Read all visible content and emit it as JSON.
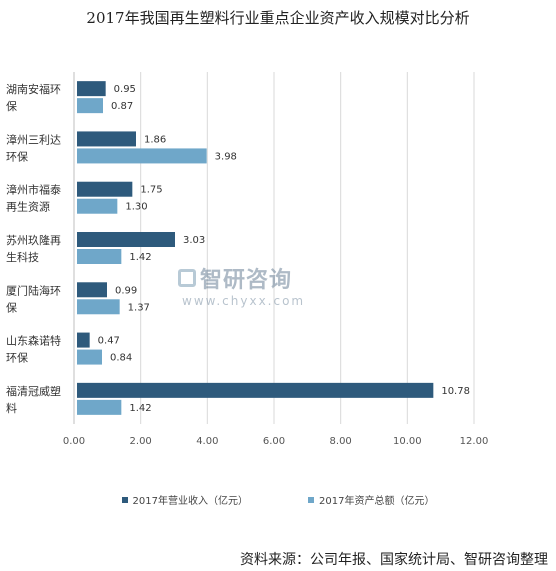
{
  "title": "2017年我国再生塑料行业重点企业资产收入规模对比分析",
  "source": "资料来源：公司年报、国家统计局、智研咨询整理",
  "watermark": {
    "name": "智研咨询",
    "url": "www.chyxx.com"
  },
  "colors": {
    "revenue": "#2e5a7c",
    "assets": "#6fa7c9",
    "grid": "#d9d9d9"
  },
  "chart_data": {
    "type": "bar",
    "orientation": "horizontal",
    "categories": [
      [
        "湖南安福环",
        "保"
      ],
      [
        "漳州三利达",
        "环保"
      ],
      [
        "漳州市福泰",
        "再生资源"
      ],
      [
        "苏州玖隆再",
        "生科技"
      ],
      [
        "厦门陆海环",
        "保"
      ],
      [
        "山东森诺特",
        "环保"
      ],
      [
        "福清冠威塑",
        "料"
      ]
    ],
    "series": [
      {
        "name": "2017年营业收入（亿元）",
        "values": [
          0.95,
          1.86,
          1.75,
          3.03,
          0.99,
          0.47,
          10.78
        ],
        "labels": [
          "0.95",
          "1.86",
          "1.75",
          "3.03",
          "0.99",
          "0.47",
          "10.78"
        ]
      },
      {
        "name": "2017年资产总额（亿元）",
        "values": [
          0.87,
          3.98,
          1.3,
          1.42,
          1.37,
          0.84,
          1.42
        ],
        "labels": [
          "0.87",
          "3.98",
          "1.30",
          "1.42",
          "1.37",
          "0.84",
          "1.42"
        ]
      }
    ],
    "xlim": [
      0,
      12
    ],
    "xticks": [
      "0.00",
      "2.00",
      "4.00",
      "6.00",
      "8.00",
      "10.00",
      "12.00"
    ],
    "grid": true,
    "legend_position": "bottom"
  }
}
